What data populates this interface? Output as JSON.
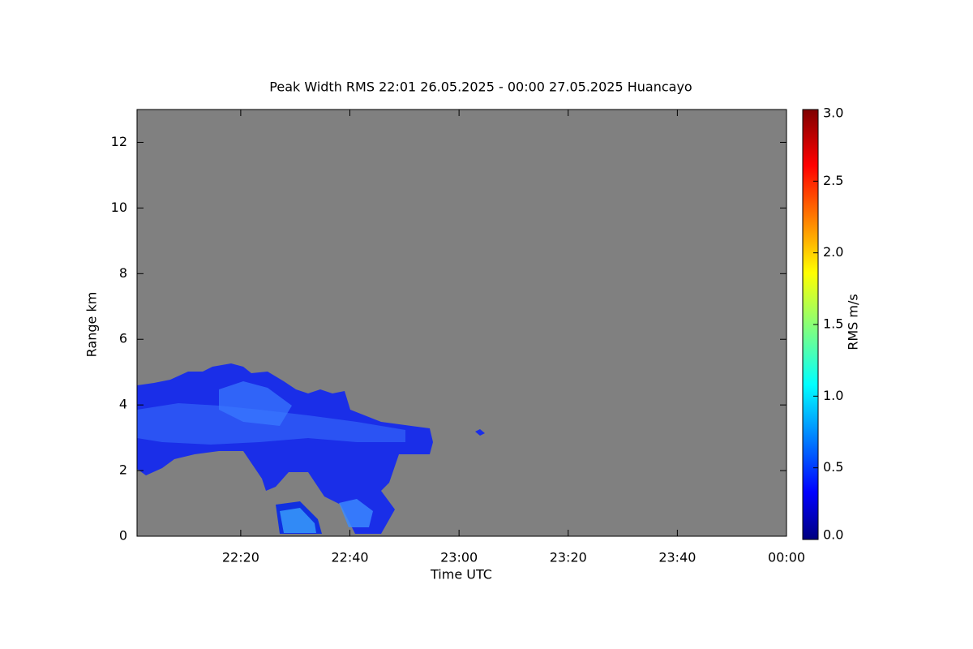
{
  "chart_data": {
    "type": "heatmap",
    "title": "Peak Width RMS   22:01 26.05.2025 - 00:00 27.05.2025 Huancayo",
    "x_label": "Time UTC",
    "y_label": "Range km",
    "colorbar_label": "RMS m/s",
    "xlim": [
      1,
      120
    ],
    "xticks": [
      {
        "value": 20,
        "label": "22:20"
      },
      {
        "value": 40,
        "label": "22:40"
      },
      {
        "value": 60,
        "label": "23:00"
      },
      {
        "value": 80,
        "label": "23:20"
      },
      {
        "value": 100,
        "label": "23:40"
      },
      {
        "value": 120,
        "label": "00:00"
      }
    ],
    "ylim": [
      0,
      13
    ],
    "yticks": [
      0,
      2,
      4,
      6,
      8,
      10,
      12
    ],
    "clim": [
      0,
      3
    ],
    "cticks": [
      {
        "value": 0,
        "label": "0.0"
      },
      {
        "value": 0.5,
        "label": "0.5"
      },
      {
        "value": 1,
        "label": "1.0"
      },
      {
        "value": 1.5,
        "label": "1.5"
      },
      {
        "value": 2,
        "label": "2.0"
      },
      {
        "value": 2.5,
        "label": "2.5"
      },
      {
        "value": 3,
        "label": "3.0"
      }
    ],
    "background": "#808080"
  }
}
